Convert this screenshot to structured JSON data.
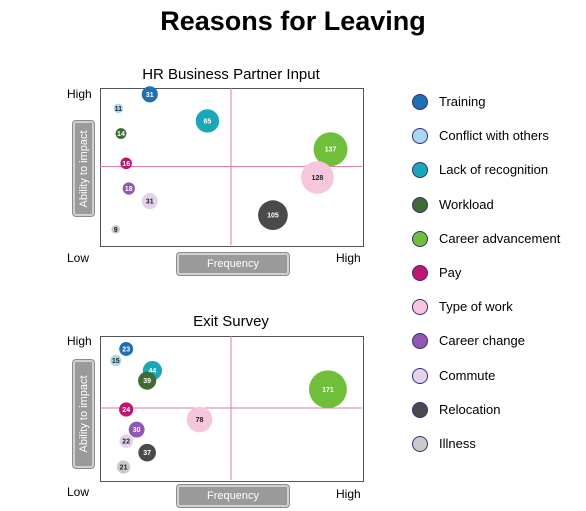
{
  "title": "Reasons for Leaving",
  "axis_words": {
    "y_high": "High",
    "y_low": "Low",
    "x_high": "High"
  },
  "ylabel": "Ability to impact",
  "xlabel": "Frequency",
  "legend": [
    {
      "name": "Training",
      "color": "#1f6fb2"
    },
    {
      "name": "Conflict with others",
      "color": "#a9d8f2"
    },
    {
      "name": "Lack of recognition",
      "color": "#1aa8b8"
    },
    {
      "name": "Workload",
      "color": "#3e6b34"
    },
    {
      "name": "Career advancement",
      "color": "#6fbf3b"
    },
    {
      "name": "Pay",
      "color": "#c0176e"
    },
    {
      "name": "Type of work",
      "color": "#f6c6dd"
    },
    {
      "name": "Career change",
      "color": "#9058b0"
    },
    {
      "name": "Commute",
      "color": "#e3d2ea"
    },
    {
      "name": "Relocation",
      "color": "#4a4a4a"
    },
    {
      "name": "Illness",
      "color": "#c9c9c9"
    }
  ],
  "chart_data": [
    {
      "type": "scatter",
      "title": "HR Business Partner Input",
      "xlabel": "Frequency",
      "ylabel": "Ability to impact",
      "xlim": [
        0,
        10
      ],
      "ylim": [
        0,
        10
      ],
      "points": [
        {
          "series": "Training",
          "x": 1.9,
          "y": 9.6,
          "size": 31
        },
        {
          "series": "Conflict with others",
          "x": 0.7,
          "y": 8.7,
          "size": 11
        },
        {
          "series": "Lack of recognition",
          "x": 4.1,
          "y": 7.9,
          "size": 65
        },
        {
          "series": "Workload",
          "x": 0.8,
          "y": 7.1,
          "size": 14
        },
        {
          "series": "Career advancement",
          "x": 8.8,
          "y": 6.1,
          "size": 137
        },
        {
          "series": "Pay",
          "x": 1.0,
          "y": 5.2,
          "size": 16
        },
        {
          "series": "Type of work",
          "x": 8.3,
          "y": 4.3,
          "size": 128
        },
        {
          "series": "Career change",
          "x": 1.1,
          "y": 3.6,
          "size": 18
        },
        {
          "series": "Commute",
          "x": 1.9,
          "y": 2.8,
          "size": 31
        },
        {
          "series": "Relocation",
          "x": 6.6,
          "y": 1.9,
          "size": 105
        },
        {
          "series": "Illness",
          "x": 0.6,
          "y": 1.0,
          "size": 9
        }
      ]
    },
    {
      "type": "scatter",
      "title": "Exit Survey",
      "xlabel": "Frequency",
      "ylabel": "Ability to impact",
      "xlim": [
        0,
        10
      ],
      "ylim": [
        0,
        10
      ],
      "points": [
        {
          "series": "Training",
          "x": 1.0,
          "y": 9.1,
          "size": 23
        },
        {
          "series": "Conflict with others",
          "x": 0.6,
          "y": 8.3,
          "size": 15
        },
        {
          "series": "Lack of recognition",
          "x": 2.0,
          "y": 7.6,
          "size": 44
        },
        {
          "series": "Workload",
          "x": 1.8,
          "y": 6.9,
          "size": 39
        },
        {
          "series": "Career advancement",
          "x": 8.7,
          "y": 6.3,
          "size": 171
        },
        {
          "series": "Pay",
          "x": 1.0,
          "y": 4.9,
          "size": 24
        },
        {
          "series": "Type of work",
          "x": 3.8,
          "y": 4.2,
          "size": 78
        },
        {
          "series": "Career change",
          "x": 1.4,
          "y": 3.5,
          "size": 30
        },
        {
          "series": "Commute",
          "x": 1.0,
          "y": 2.7,
          "size": 22
        },
        {
          "series": "Relocation",
          "x": 1.8,
          "y": 1.9,
          "size": 37
        },
        {
          "series": "Illness",
          "x": 0.9,
          "y": 0.9,
          "size": 21
        }
      ]
    }
  ]
}
